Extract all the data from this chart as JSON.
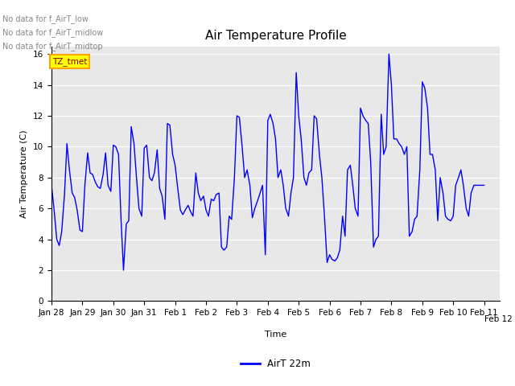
{
  "title": "Air Temperature Profile",
  "xlabel": "Time",
  "ylabel": "Air Temperature (C)",
  "legend_label": "AirT 22m",
  "line_color": "blue",
  "bg_color": "#e8e8e8",
  "ylim": [
    0,
    16.5
  ],
  "yticks": [
    0,
    2,
    4,
    6,
    8,
    10,
    12,
    14,
    16
  ],
  "text_annotations": [
    "No data for f_AirT_low",
    "No data for f_AirT_midlow",
    "No data for f_AirT_midtop"
  ],
  "annotation_box_label": "TZ_tmet",
  "x_values": [
    0,
    0.08,
    0.17,
    0.25,
    0.33,
    0.42,
    0.5,
    0.58,
    0.67,
    0.75,
    0.83,
    0.92,
    1.0,
    1.08,
    1.17,
    1.25,
    1.33,
    1.42,
    1.5,
    1.58,
    1.67,
    1.75,
    1.83,
    1.92,
    2.0,
    2.08,
    2.17,
    2.25,
    2.33,
    2.42,
    2.5,
    2.58,
    2.67,
    2.75,
    2.83,
    2.92,
    3.0,
    3.08,
    3.17,
    3.25,
    3.33,
    3.42,
    3.5,
    3.58,
    3.67,
    3.75,
    3.83,
    3.92,
    4.0,
    4.08,
    4.17,
    4.25,
    4.33,
    4.42,
    4.5,
    4.58,
    4.67,
    4.75,
    4.83,
    4.92,
    5.0,
    5.08,
    5.17,
    5.25,
    5.33,
    5.42,
    5.5,
    5.58,
    5.67,
    5.75,
    5.83,
    5.92,
    6.0,
    6.08,
    6.17,
    6.25,
    6.33,
    6.42,
    6.5,
    6.58,
    6.67,
    6.75,
    6.83,
    6.92,
    7.0,
    7.08,
    7.17,
    7.25,
    7.33,
    7.42,
    7.5,
    7.58,
    7.67,
    7.75,
    7.83,
    7.92,
    8.0,
    8.08,
    8.17,
    8.25,
    8.33,
    8.42,
    8.5,
    8.58,
    8.67,
    8.75,
    8.83,
    8.92,
    9.0,
    9.08,
    9.17,
    9.25,
    9.33,
    9.42,
    9.5,
    9.58,
    9.67,
    9.75,
    9.83,
    9.92,
    10.0,
    10.08,
    10.17,
    10.25,
    10.33,
    10.42,
    10.5,
    10.58,
    10.67,
    10.75,
    10.83,
    10.92,
    11.0,
    11.08,
    11.17,
    11.25,
    11.33,
    11.42,
    11.5,
    11.58,
    11.67,
    11.75,
    11.83,
    11.92,
    12.0,
    12.08,
    12.17,
    12.25,
    12.33,
    12.42,
    12.5,
    12.58,
    12.67,
    12.75,
    12.83,
    12.92,
    13.0,
    13.08,
    13.17,
    13.25,
    13.33,
    13.42,
    13.5,
    13.58,
    13.67,
    13.75,
    13.83,
    13.92,
    14.0
  ],
  "y_values": [
    7.5,
    6.0,
    4.0,
    3.6,
    4.5,
    6.9,
    10.2,
    8.5,
    7.0,
    6.7,
    5.9,
    4.6,
    4.5,
    7.5,
    9.6,
    8.3,
    8.2,
    7.7,
    7.4,
    7.3,
    8.2,
    9.6,
    7.5,
    7.1,
    10.1,
    10.0,
    9.5,
    5.3,
    2.0,
    5.0,
    5.2,
    11.3,
    10.2,
    8.0,
    6.0,
    5.5,
    9.9,
    10.1,
    8.0,
    7.8,
    8.3,
    9.8,
    7.3,
    6.8,
    5.3,
    11.5,
    11.4,
    9.5,
    8.8,
    7.4,
    5.9,
    5.6,
    5.9,
    6.2,
    5.8,
    5.5,
    8.3,
    7.0,
    6.5,
    6.8,
    5.9,
    5.5,
    6.6,
    6.5,
    6.9,
    7.0,
    3.5,
    3.3,
    3.5,
    5.5,
    5.3,
    8.0,
    12.0,
    11.9,
    10.0,
    8.0,
    8.5,
    7.5,
    5.4,
    6.0,
    6.5,
    7.0,
    7.5,
    3.0,
    11.7,
    12.1,
    11.5,
    10.5,
    8.0,
    8.5,
    7.5,
    6.0,
    5.5,
    7.0,
    8.0,
    14.8,
    12.0,
    10.5,
    8.0,
    7.5,
    8.3,
    8.5,
    12.0,
    11.8,
    9.5,
    8.0,
    5.6,
    2.5,
    3.0,
    2.7,
    2.6,
    2.8,
    3.3,
    5.5,
    4.2,
    8.5,
    8.8,
    7.5,
    6.0,
    5.5,
    12.5,
    12.0,
    11.7,
    11.5,
    9.0,
    3.5,
    4.0,
    4.2,
    12.1,
    9.5,
    10.0,
    16.0,
    14.0,
    10.5,
    10.5,
    10.2,
    10.0,
    9.5,
    10.0,
    4.2,
    4.5,
    5.3,
    5.5,
    8.5,
    14.2,
    13.8,
    12.5,
    9.5,
    9.5,
    8.5,
    5.2,
    8.0,
    7.0,
    5.5,
    5.3,
    5.2,
    5.5,
    7.5,
    8.0,
    8.5,
    7.5,
    6.0,
    5.5,
    7.0,
    7.5,
    7.5,
    7.5,
    7.5,
    7.5
  ],
  "xtick_positions": [
    0,
    1,
    2,
    3,
    4,
    5,
    6,
    7,
    8,
    9,
    10,
    11,
    12,
    13,
    14
  ],
  "xtick_labels": [
    "Jan 28",
    "Jan 29",
    "Jan 30",
    "Jan 31",
    "Feb 1",
    "Feb 2",
    "Feb 3",
    "Feb 4",
    "Feb 5",
    "Feb 6",
    "Feb 7",
    "Feb 8",
    "Feb 9",
    "Feb 10",
    "Feb 11"
  ],
  "title_fontsize": 11,
  "axis_fontsize": 8,
  "tick_fontsize": 7.5
}
